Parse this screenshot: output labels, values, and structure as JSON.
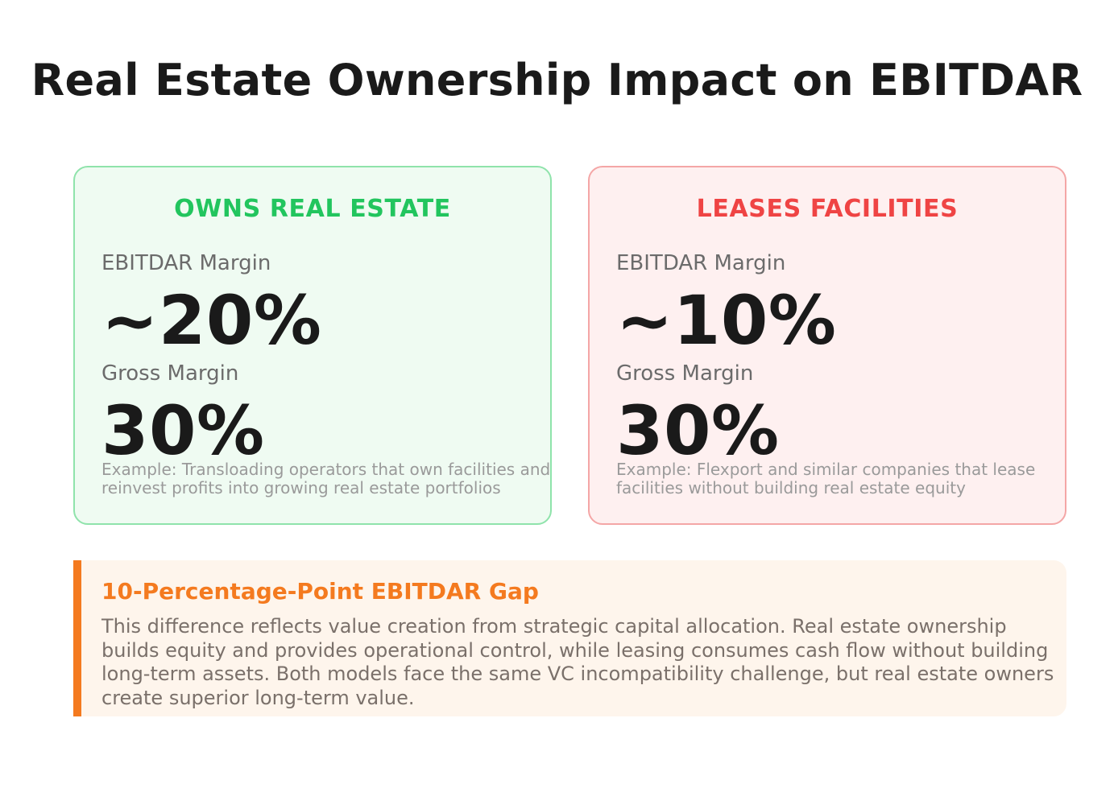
{
  "page": {
    "title": "Real Estate Ownership Impact on EBITDAR"
  },
  "cards": {
    "own": {
      "heading": "OWNS REAL ESTATE",
      "ebitdar_label": "EBITDAR Margin",
      "ebitdar_value": "~20%",
      "gross_label": "Gross Margin",
      "gross_value": "30%",
      "example_line1": "Example: Transloading operators that own facilities and",
      "example_line2": "reinvest profits into growing real estate portfolios",
      "accent_color": "#22c55e",
      "background_color": "#effbf2",
      "border_color": "#8fe3ab"
    },
    "lease": {
      "heading": "LEASES FACILITIES",
      "ebitdar_label": "EBITDAR Margin",
      "ebitdar_value": "~10%",
      "gross_label": "Gross Margin",
      "gross_value": "30%",
      "example_line1": "Example: Flexport and similar companies that lease",
      "example_line2": "facilities without building real estate equity",
      "accent_color": "#ef4444",
      "background_color": "#fef0f0",
      "border_color": "#f4a6a6"
    }
  },
  "gap_callout": {
    "title": "10-Percentage-Point EBITDAR Gap",
    "body_line1": "This difference reflects value creation from strategic capital allocation. Real estate ownership",
    "body_line2": "builds equity and provides operational control, while leasing consumes cash flow without building",
    "body_line3": "long-term assets. Both models face the same VC incompatibility challenge, but real estate owners",
    "body_line4": "create superior long-term value.",
    "accent_color": "#f47a1f",
    "background_color": "#fef5ec"
  }
}
